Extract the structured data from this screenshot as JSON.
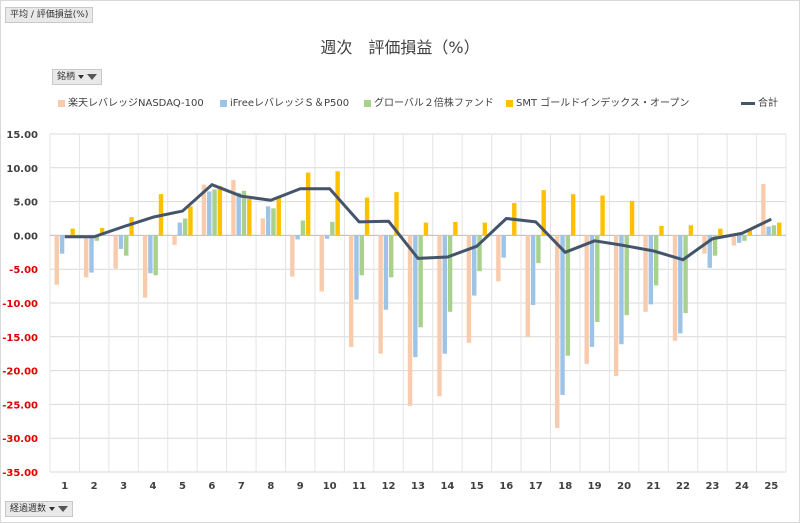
{
  "pivot": {
    "report_filter_label": "平均 / 評価損益(%)",
    "legend_field_label": "銘柄",
    "axis_field_label": "経過週数"
  },
  "chart_data": {
    "type": "bar",
    "title": "週次　評価損益（%）",
    "xlabel": "",
    "ylabel": "",
    "ylim": [
      -35,
      15
    ],
    "ytick_step": 5,
    "ytick_labels": [
      "15.00",
      "10.00",
      "5.00",
      "0.00",
      "-5.00",
      "-10.00",
      "-15.00",
      "-20.00",
      "-25.00",
      "-30.00",
      "-35.00"
    ],
    "negative_tick_color": "#e00000",
    "grid": true,
    "legend_position": "top",
    "categories": [
      "1",
      "2",
      "3",
      "4",
      "5",
      "6",
      "7",
      "8",
      "9",
      "10",
      "11",
      "12",
      "13",
      "14",
      "15",
      "16",
      "17",
      "18",
      "19",
      "20",
      "21",
      "22",
      "23",
      "24",
      "25"
    ],
    "series": [
      {
        "name": "楽天レバレッジNASDAQ-100",
        "type": "bar",
        "color": "#f8cbad",
        "values": [
          -7.3,
          -6.2,
          -4.9,
          -9.2,
          -1.4,
          7.5,
          8.2,
          2.5,
          -6.1,
          -8.3,
          -16.5,
          -17.5,
          -25.2,
          -23.8,
          -15.9,
          -6.8,
          -15.0,
          -28.5,
          -19.0,
          -20.8,
          -11.3,
          -15.6,
          -2.7,
          -1.5,
          7.6
        ]
      },
      {
        "name": "iFreeレバレッジＳ＆P500",
        "type": "bar",
        "color": "#9dc3e6",
        "values": [
          -2.7,
          -5.5,
          -2.0,
          -5.6,
          1.9,
          6.5,
          6.3,
          4.3,
          -0.6,
          -0.5,
          -9.5,
          -11.0,
          -18.0,
          -17.5,
          -8.9,
          -3.3,
          -10.3,
          -23.6,
          -16.5,
          -16.1,
          -10.2,
          -14.5,
          -4.8,
          -1.1,
          1.3
        ]
      },
      {
        "name": "グローバル２倍株ファンド",
        "type": "bar",
        "color": "#a9d18e",
        "values": [
          -0.3,
          -0.8,
          -3.0,
          -5.9,
          2.5,
          6.8,
          6.6,
          4.0,
          2.2,
          2.0,
          -5.9,
          -6.2,
          -13.6,
          -11.3,
          -5.3,
          0.0,
          -4.1,
          -17.8,
          -12.8,
          -11.8,
          -7.4,
          -11.5,
          -3.0,
          -0.8,
          1.5
        ]
      },
      {
        "name": "SMT ゴールドインデックス・オープン",
        "type": "bar",
        "color": "#ffc000",
        "values": [
          1.0,
          1.1,
          2.7,
          6.1,
          4.3,
          7.3,
          5.4,
          5.7,
          9.3,
          9.5,
          5.6,
          6.4,
          1.9,
          2.0,
          1.9,
          4.8,
          6.7,
          6.1,
          5.9,
          5.1,
          1.4,
          1.5,
          1.0,
          1.0,
          1.9
        ]
      },
      {
        "name": "合計",
        "type": "line",
        "color": "#44546a",
        "values": [
          -0.2,
          -0.2,
          1.3,
          2.7,
          3.6,
          7.5,
          5.8,
          5.2,
          6.9,
          6.9,
          2.0,
          2.1,
          -3.4,
          -3.2,
          -1.6,
          2.5,
          2.0,
          -2.5,
          -0.8,
          -1.5,
          -2.3,
          -3.6,
          -0.5,
          0.3,
          2.4
        ]
      }
    ]
  }
}
